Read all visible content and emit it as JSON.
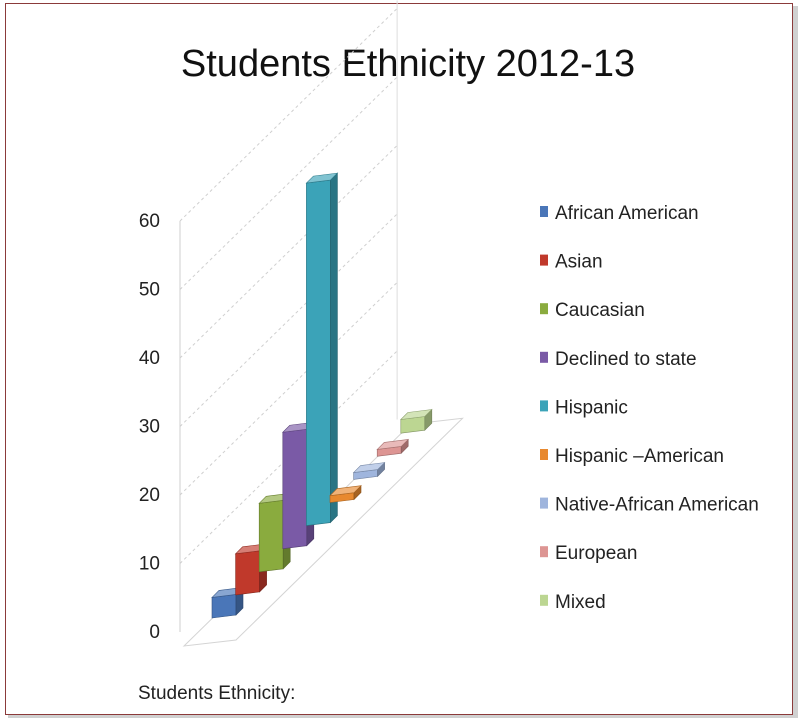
{
  "chart_data": {
    "type": "bar",
    "style": "3d-column",
    "title": "Students Ethnicity 2012-13",
    "xlabel": "Students Ethnicity:",
    "ylabel": "",
    "ylim": [
      0,
      60
    ],
    "yticks": [
      "0",
      "10",
      "20",
      "30",
      "40",
      "50",
      "60"
    ],
    "grid": true,
    "legend_position": "right",
    "categories": [
      "African American",
      "Asian",
      "Caucasian",
      "Declined to state",
      "Hispanic",
      "Hispanic –American",
      "Native-African American",
      "European",
      "Mixed"
    ],
    "values": [
      3,
      6,
      10,
      17,
      50,
      1,
      1,
      1,
      2
    ],
    "colors": [
      "#4a76b8",
      "#c0392b",
      "#8aab3e",
      "#7a5aa6",
      "#3ba3b8",
      "#e8892f",
      "#9fb5dd",
      "#dd9593",
      "#bcd692"
    ]
  }
}
